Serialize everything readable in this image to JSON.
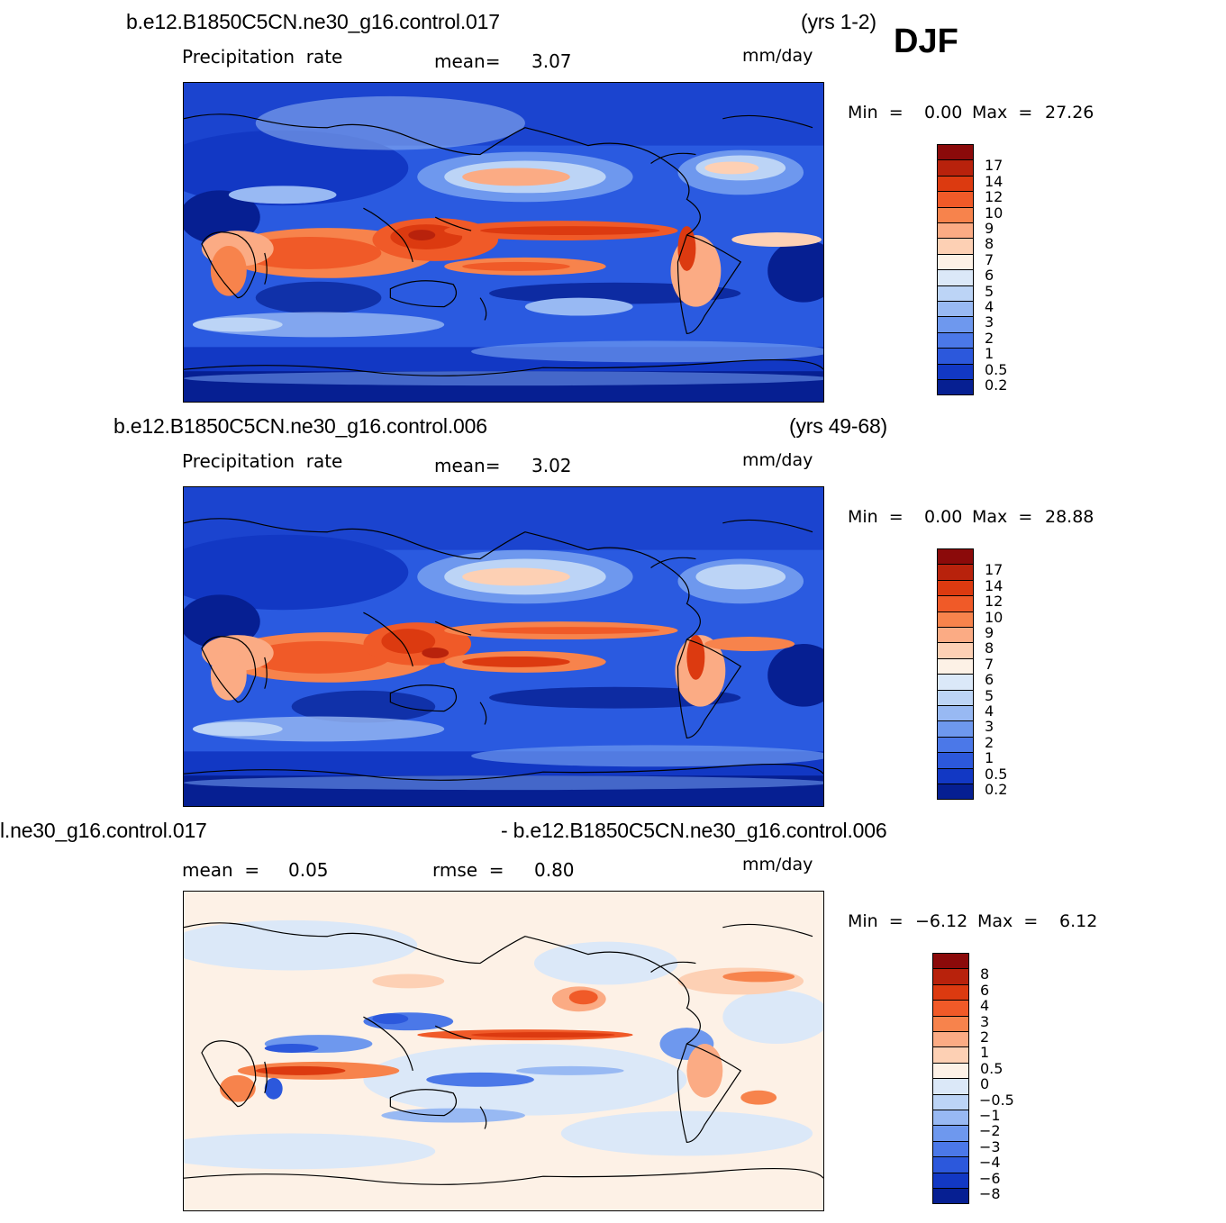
{
  "season": "DJF",
  "panel1": {
    "case": "b.e12.B1850C5CN.ne30_g16.control.017",
    "years": "(yrs 1-2)",
    "field": "Precipitation  rate",
    "mean_label": "mean=",
    "mean_value": "3.07",
    "units": "mm/day",
    "min_label": "Min  =",
    "min_value": "0.00",
    "max_label": "Max  =",
    "max_value": "27.26"
  },
  "panel2": {
    "case": "b.e12.B1850C5CN.ne30_g16.control.006",
    "years": "(yrs 49-68)",
    "field": "Precipitation  rate",
    "mean_label": "mean=",
    "mean_value": "3.02",
    "units": "mm/day",
    "min_label": "Min  =",
    "min_value": "0.00",
    "max_label": "Max  =",
    "max_value": "28.88"
  },
  "panel3": {
    "case_left": "l.ne30_g16.control.017",
    "case_right": "- b.e12.B1850C5CN.ne30_g16.control.006",
    "mean_label": "mean  =",
    "mean_value": "0.05",
    "rmse_label": "rmse  =",
    "rmse_value": "0.80",
    "units": "mm/day",
    "min_label": "Min  =",
    "min_value": "−6.12",
    "max_label": "Max  =",
    "max_value": "6.12"
  },
  "precip_colorbar": {
    "labels": [
      "17",
      "14",
      "12",
      "10",
      "9",
      "8",
      "7",
      "6",
      "5",
      "4",
      "3",
      "2",
      "1",
      "0.5",
      "0.2"
    ],
    "colors": [
      "#8b0a0a",
      "#b8220c",
      "#dc3a10",
      "#f05a28",
      "#f7834c",
      "#fbab84",
      "#fdd0b4",
      "#fdf1e6",
      "#dbe8f8",
      "#bcd4f6",
      "#98b9f3",
      "#6e98ee",
      "#4b78e8",
      "#2c58dc",
      "#1238c4",
      "#061f92"
    ]
  },
  "diff_colorbar": {
    "labels": [
      "8",
      "6",
      "4",
      "3",
      "2",
      "1",
      "0.5",
      "0",
      "−0.5",
      "−1",
      "−2",
      "−3",
      "−4",
      "−6",
      "−8"
    ],
    "colors": [
      "#8b0a0a",
      "#b8220c",
      "#dc3a10",
      "#f05a28",
      "#f7834c",
      "#fbab84",
      "#fdd0b4",
      "#fdf1e6",
      "#dbe8f8",
      "#bcd4f6",
      "#98b9f3",
      "#6e98ee",
      "#4b78e8",
      "#2c58dc",
      "#1238c4",
      "#061f92"
    ]
  }
}
